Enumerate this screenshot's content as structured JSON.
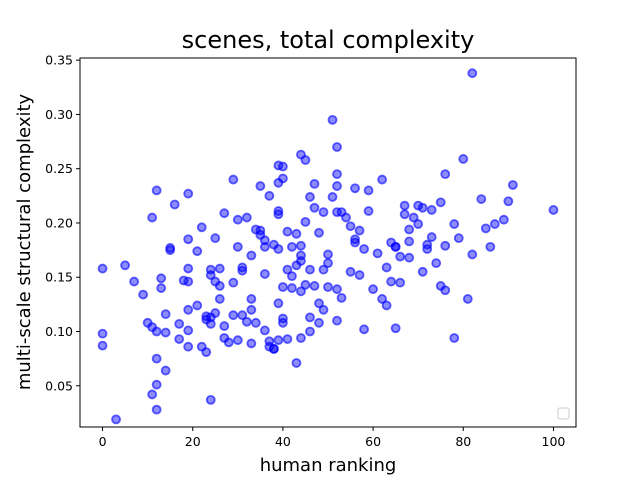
{
  "chart_data": {
    "type": "scatter",
    "title": "scenes, total complexity",
    "xlabel": "human ranking",
    "ylabel": "multi-scale structural complexity",
    "xlim": [
      -5,
      105
    ],
    "ylim": [
      0.012,
      0.352
    ],
    "xticks": [
      "0",
      "20",
      "40",
      "60",
      "80",
      "100"
    ],
    "yticks": [
      "0.05",
      "0.10",
      "0.15",
      "0.20",
      "0.25",
      "0.30",
      "0.35"
    ],
    "marker_color": "#0000ff",
    "legend": "lower right (empty)",
    "grid": false,
    "points": [
      [
        0,
        0.158
      ],
      [
        0,
        0.098
      ],
      [
        0,
        0.087
      ],
      [
        3,
        0.019
      ],
      [
        5,
        0.161
      ],
      [
        7,
        0.146
      ],
      [
        9,
        0.134
      ],
      [
        10,
        0.108
      ],
      [
        11,
        0.205
      ],
      [
        11,
        0.104
      ],
      [
        11,
        0.042
      ],
      [
        12,
        0.23
      ],
      [
        12,
        0.1
      ],
      [
        12,
        0.075
      ],
      [
        12,
        0.051
      ],
      [
        12,
        0.028
      ],
      [
        13,
        0.149
      ],
      [
        13,
        0.14
      ],
      [
        14,
        0.116
      ],
      [
        14,
        0.099
      ],
      [
        14,
        0.064
      ],
      [
        15,
        0.177
      ],
      [
        15,
        0.175
      ],
      [
        16,
        0.217
      ],
      [
        17,
        0.107
      ],
      [
        17,
        0.093
      ],
      [
        18,
        0.147
      ],
      [
        19,
        0.227
      ],
      [
        19,
        0.185
      ],
      [
        19,
        0.158
      ],
      [
        19,
        0.146
      ],
      [
        19,
        0.12
      ],
      [
        19,
        0.101
      ],
      [
        19,
        0.086
      ],
      [
        21,
        0.174
      ],
      [
        21,
        0.124
      ],
      [
        22,
        0.196
      ],
      [
        22,
        0.086
      ],
      [
        23,
        0.114
      ],
      [
        23,
        0.111
      ],
      [
        23,
        0.081
      ],
      [
        24,
        0.157
      ],
      [
        24,
        0.152
      ],
      [
        24,
        0.113
      ],
      [
        24,
        0.107
      ],
      [
        24,
        0.037
      ],
      [
        25,
        0.186
      ],
      [
        25,
        0.146
      ],
      [
        25,
        0.117
      ],
      [
        26,
        0.158
      ],
      [
        26,
        0.142
      ],
      [
        26,
        0.13
      ],
      [
        27,
        0.209
      ],
      [
        27,
        0.105
      ],
      [
        27,
        0.094
      ],
      [
        28,
        0.09
      ],
      [
        29,
        0.24
      ],
      [
        29,
        0.145
      ],
      [
        29,
        0.115
      ],
      [
        30,
        0.203
      ],
      [
        30,
        0.178
      ],
      [
        30,
        0.092
      ],
      [
        31,
        0.159
      ],
      [
        31,
        0.156
      ],
      [
        31,
        0.115
      ],
      [
        32,
        0.109
      ],
      [
        32,
        0.205
      ],
      [
        33,
        0.17
      ],
      [
        33,
        0.13
      ],
      [
        33,
        0.12
      ],
      [
        33,
        0.089
      ],
      [
        34,
        0.194
      ],
      [
        34,
        0.108
      ],
      [
        35,
        0.234
      ],
      [
        35,
        0.189
      ],
      [
        35,
        0.193
      ],
      [
        36,
        0.184
      ],
      [
        36,
        0.178
      ],
      [
        36,
        0.153
      ],
      [
        36,
        0.101
      ],
      [
        37,
        0.225
      ],
      [
        37,
        0.086
      ],
      [
        37,
        0.091
      ],
      [
        38,
        0.18
      ],
      [
        38,
        0.084
      ],
      [
        38,
        0.084
      ],
      [
        39,
        0.253
      ],
      [
        39,
        0.237
      ],
      [
        39,
        0.211
      ],
      [
        39,
        0.208
      ],
      [
        39,
        0.176
      ],
      [
        39,
        0.126
      ],
      [
        39,
        0.092
      ],
      [
        40,
        0.252
      ],
      [
        40,
        0.241
      ],
      [
        40,
        0.112
      ],
      [
        40,
        0.108
      ],
      [
        40,
        0.141
      ],
      [
        41,
        0.192
      ],
      [
        41,
        0.157
      ],
      [
        41,
        0.093
      ],
      [
        42,
        0.178
      ],
      [
        42,
        0.151
      ],
      [
        42,
        0.14
      ],
      [
        43,
        0.19
      ],
      [
        43,
        0.161
      ],
      [
        43,
        0.071
      ],
      [
        44,
        0.263
      ],
      [
        44,
        0.17
      ],
      [
        44,
        0.165
      ],
      [
        44,
        0.094
      ],
      [
        44,
        0.179
      ],
      [
        44,
        0.137
      ],
      [
        45,
        0.258
      ],
      [
        45,
        0.201
      ],
      [
        45,
        0.143
      ],
      [
        46,
        0.224
      ],
      [
        46,
        0.157
      ],
      [
        46,
        0.1
      ],
      [
        46,
        0.113
      ],
      [
        47,
        0.236
      ],
      [
        47,
        0.214
      ],
      [
        47,
        0.142
      ],
      [
        48,
        0.191
      ],
      [
        48,
        0.126
      ],
      [
        48,
        0.108
      ],
      [
        49,
        0.21
      ],
      [
        49,
        0.157
      ],
      [
        49,
        0.12
      ],
      [
        50,
        0.171
      ],
      [
        50,
        0.141
      ],
      [
        50,
        0.163
      ],
      [
        51,
        0.295
      ],
      [
        51,
        0.224
      ],
      [
        52,
        0.27
      ],
      [
        52,
        0.245
      ],
      [
        52,
        0.234
      ],
      [
        52,
        0.21
      ],
      [
        52,
        0.139
      ],
      [
        52,
        0.11
      ],
      [
        53,
        0.131
      ],
      [
        53,
        0.21
      ],
      [
        54,
        0.205
      ],
      [
        55,
        0.197
      ],
      [
        55,
        0.155
      ],
      [
        56,
        0.232
      ],
      [
        56,
        0.185
      ],
      [
        56,
        0.182
      ],
      [
        57,
        0.193
      ],
      [
        57,
        0.152
      ],
      [
        58,
        0.176
      ],
      [
        58,
        0.102
      ],
      [
        59,
        0.23
      ],
      [
        59,
        0.211
      ],
      [
        60,
        0.139
      ],
      [
        61,
        0.172
      ],
      [
        62,
        0.24
      ],
      [
        62,
        0.13
      ],
      [
        63,
        0.124
      ],
      [
        63,
        0.159
      ],
      [
        64,
        0.182
      ],
      [
        64,
        0.146
      ],
      [
        65,
        0.103
      ],
      [
        65,
        0.178
      ],
      [
        65,
        0.178
      ],
      [
        66,
        0.169
      ],
      [
        66,
        0.145
      ],
      [
        67,
        0.216
      ],
      [
        67,
        0.208
      ],
      [
        68,
        0.194
      ],
      [
        68,
        0.183
      ],
      [
        68,
        0.168
      ],
      [
        69,
        0.205
      ],
      [
        70,
        0.216
      ],
      [
        70,
        0.199
      ],
      [
        71,
        0.155
      ],
      [
        71,
        0.214
      ],
      [
        72,
        0.18
      ],
      [
        72,
        0.176
      ],
      [
        73,
        0.212
      ],
      [
        73,
        0.187
      ],
      [
        74,
        0.163
      ],
      [
        75,
        0.219
      ],
      [
        75,
        0.142
      ],
      [
        76,
        0.245
      ],
      [
        76,
        0.179
      ],
      [
        76,
        0.138
      ],
      [
        78,
        0.199
      ],
      [
        78,
        0.094
      ],
      [
        79,
        0.186
      ],
      [
        80,
        0.259
      ],
      [
        81,
        0.13
      ],
      [
        82,
        0.338
      ],
      [
        82,
        0.171
      ],
      [
        84,
        0.222
      ],
      [
        85,
        0.195
      ],
      [
        86,
        0.178
      ],
      [
        87,
        0.199
      ],
      [
        89,
        0.203
      ],
      [
        90,
        0.22
      ],
      [
        91,
        0.235
      ],
      [
        100,
        0.212
      ]
    ]
  }
}
